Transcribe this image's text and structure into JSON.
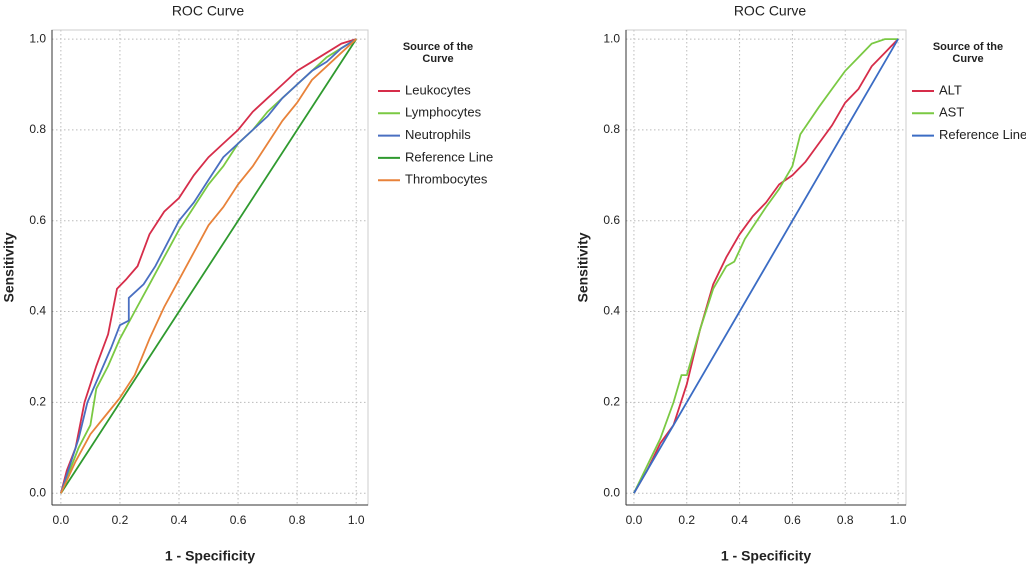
{
  "chart_data": [
    {
      "type": "line",
      "title": "ROC Curve",
      "x_label": "1 - Specificity",
      "y_label": "Sensitivity",
      "legend_title": [
        "Source of the",
        "Curve"
      ],
      "xlim": [
        -0.03,
        1.04
      ],
      "ylim": [
        -0.026,
        1.02
      ],
      "grid": true,
      "xticks": [
        {
          "value": 0,
          "label": "0.0"
        },
        {
          "value": 0.2,
          "label": "0.2"
        },
        {
          "value": 0.4,
          "label": "0.4"
        },
        {
          "value": 0.6,
          "label": "0.6"
        },
        {
          "value": 0.8,
          "label": "0.8"
        },
        {
          "value": 1,
          "label": "1.0"
        }
      ],
      "yticks": [
        {
          "value": 0,
          "label": "0.0"
        },
        {
          "value": 0.2,
          "label": "0.2"
        },
        {
          "value": 0.4,
          "label": "0.4"
        },
        {
          "value": 0.6,
          "label": "0.6"
        },
        {
          "value": 0.8,
          "label": "0.8"
        },
        {
          "value": 1,
          "label": "1.0"
        }
      ],
      "series": [
        {
          "name": "Leukocytes",
          "color": "#d62d4a",
          "x": [
            0,
            0.02,
            0.05,
            0.08,
            0.12,
            0.16,
            0.19,
            0.22,
            0.26,
            0.3,
            0.35,
            0.4,
            0.45,
            0.5,
            0.55,
            0.6,
            0.65,
            0.7,
            0.75,
            0.8,
            0.85,
            0.9,
            0.95,
            1
          ],
          "values": [
            0,
            0.05,
            0.1,
            0.2,
            0.28,
            0.35,
            0.45,
            0.47,
            0.5,
            0.57,
            0.62,
            0.65,
            0.7,
            0.74,
            0.77,
            0.8,
            0.84,
            0.87,
            0.9,
            0.93,
            0.95,
            0.97,
            0.99,
            1
          ]
        },
        {
          "name": "Lymphocytes",
          "color": "#7ac943",
          "x": [
            0,
            0.03,
            0.06,
            0.1,
            0.12,
            0.16,
            0.2,
            0.25,
            0.3,
            0.35,
            0.4,
            0.45,
            0.5,
            0.55,
            0.6,
            0.65,
            0.7,
            0.75,
            0.8,
            0.85,
            0.9,
            0.95,
            1
          ],
          "values": [
            0,
            0.05,
            0.1,
            0.15,
            0.23,
            0.28,
            0.34,
            0.4,
            0.46,
            0.52,
            0.58,
            0.63,
            0.68,
            0.72,
            0.77,
            0.8,
            0.84,
            0.87,
            0.9,
            0.93,
            0.96,
            0.98,
            1
          ]
        },
        {
          "name": "Neutrophils",
          "color": "#4a6fc1",
          "x": [
            0,
            0.03,
            0.06,
            0.09,
            0.13,
            0.17,
            0.2,
            0.23,
            0.23,
            0.28,
            0.32,
            0.36,
            0.4,
            0.45,
            0.5,
            0.55,
            0.6,
            0.65,
            0.7,
            0.75,
            0.8,
            0.85,
            0.9,
            0.95,
            1
          ],
          "values": [
            0,
            0.06,
            0.12,
            0.2,
            0.26,
            0.32,
            0.37,
            0.38,
            0.43,
            0.46,
            0.5,
            0.55,
            0.6,
            0.64,
            0.69,
            0.74,
            0.77,
            0.8,
            0.83,
            0.87,
            0.9,
            0.93,
            0.95,
            0.98,
            1
          ]
        },
        {
          "name": "Reference Line",
          "color": "#2f9a2f",
          "x": [
            0,
            1
          ],
          "values": [
            0,
            1
          ]
        },
        {
          "name": "Thrombocytes",
          "color": "#e8823a",
          "x": [
            0,
            0.05,
            0.1,
            0.15,
            0.2,
            0.25,
            0.3,
            0.35,
            0.4,
            0.45,
            0.5,
            0.55,
            0.6,
            0.65,
            0.7,
            0.75,
            0.8,
            0.85,
            0.9,
            0.95,
            1
          ],
          "values": [
            0,
            0.07,
            0.13,
            0.17,
            0.21,
            0.26,
            0.34,
            0.41,
            0.47,
            0.53,
            0.59,
            0.63,
            0.68,
            0.72,
            0.77,
            0.82,
            0.86,
            0.91,
            0.94,
            0.97,
            1
          ]
        }
      ]
    },
    {
      "type": "line",
      "title": "ROC Curve",
      "x_label": "1 - Specificity",
      "y_label": "Sensitivity",
      "legend_title": [
        "Source of the",
        "Curve"
      ],
      "xlim": [
        -0.03,
        1.03
      ],
      "ylim": [
        -0.026,
        1.02
      ],
      "grid": true,
      "xticks": [
        {
          "value": 0,
          "label": "0.0"
        },
        {
          "value": 0.2,
          "label": "0.2"
        },
        {
          "value": 0.4,
          "label": "0.4"
        },
        {
          "value": 0.6,
          "label": "0.6"
        },
        {
          "value": 0.8,
          "label": "0.8"
        },
        {
          "value": 1,
          "label": "1.0"
        }
      ],
      "yticks": [
        {
          "value": 0,
          "label": "0.0"
        },
        {
          "value": 0.2,
          "label": "0.2"
        },
        {
          "value": 0.4,
          "label": "0.4"
        },
        {
          "value": 0.6,
          "label": "0.6"
        },
        {
          "value": 0.8,
          "label": "0.8"
        },
        {
          "value": 1,
          "label": "1.0"
        }
      ],
      "series": [
        {
          "name": "ALT",
          "color": "#d62d4a",
          "x": [
            0,
            0.05,
            0.1,
            0.15,
            0.2,
            0.25,
            0.3,
            0.35,
            0.4,
            0.45,
            0.5,
            0.55,
            0.6,
            0.65,
            0.7,
            0.75,
            0.8,
            0.85,
            0.9,
            0.95,
            1
          ],
          "values": [
            0,
            0.05,
            0.11,
            0.15,
            0.24,
            0.36,
            0.46,
            0.52,
            0.57,
            0.61,
            0.64,
            0.68,
            0.7,
            0.73,
            0.77,
            0.81,
            0.86,
            0.89,
            0.94,
            0.97,
            1
          ]
        },
        {
          "name": "AST",
          "color": "#7ac943",
          "x": [
            0,
            0.05,
            0.1,
            0.15,
            0.18,
            0.2,
            0.25,
            0.3,
            0.35,
            0.38,
            0.42,
            0.5,
            0.55,
            0.6,
            0.63,
            0.7,
            0.75,
            0.8,
            0.85,
            0.9,
            0.95,
            1
          ],
          "values": [
            0,
            0.06,
            0.12,
            0.2,
            0.26,
            0.26,
            0.36,
            0.45,
            0.5,
            0.51,
            0.56,
            0.63,
            0.67,
            0.72,
            0.79,
            0.85,
            0.89,
            0.93,
            0.96,
            0.99,
            1,
            1
          ]
        },
        {
          "name": "Reference Line",
          "color": "#3b6cc4",
          "x": [
            0,
            1
          ],
          "values": [
            0,
            1
          ]
        }
      ]
    }
  ]
}
